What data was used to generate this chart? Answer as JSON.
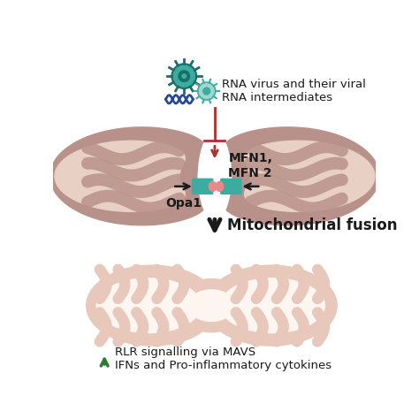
{
  "bg_color": "#ffffff",
  "mito_outer_color": "#b8928a",
  "mito_inner_color": "#e8d0c5",
  "mito_cristae_color": "#b8928a",
  "mito_fused_outer": "#e8c8ba",
  "mito_fused_inner": "#fdf5f0",
  "teal_color": "#3aada0",
  "pink_color": "#e88888",
  "red_arrow_color": "#b03030",
  "black_arrow_color": "#1a1a1a",
  "green_arrow_color": "#2d7a35",
  "text_color": "#1a1a1a",
  "label_mfn": "MFN1,\nMFN 2",
  "label_opa": "Opa1",
  "label_fusion": "Mitochondrial fusion",
  "label_rlr": "RLR signalling via MAVS\nIFNs and Pro-inflammatory cytokines",
  "label_rna": "RNA virus and their viral\nRNA intermediates",
  "figsize": [
    4.74,
    4.74
  ],
  "dpi": 100
}
